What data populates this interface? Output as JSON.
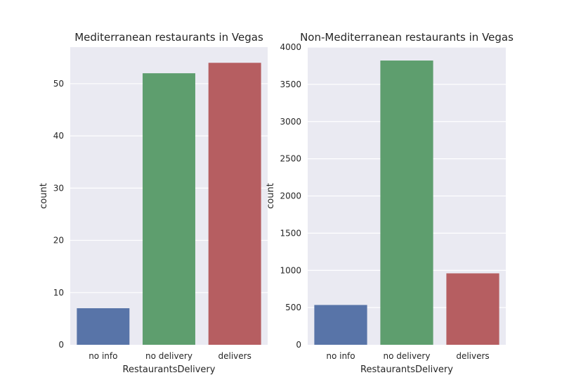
{
  "chart_data": [
    {
      "type": "bar",
      "title": "Mediterranean restaurants in Vegas",
      "xlabel": "RestaurantsDelivery",
      "ylabel": "count",
      "categories": [
        "no info",
        "no delivery",
        "delivers"
      ],
      "values": [
        7,
        52,
        54
      ],
      "colors": [
        "#5874a8",
        "#5e9e6e",
        "#b65e61"
      ],
      "ylim": [
        0,
        57
      ],
      "yticks": [
        0,
        10,
        20,
        30,
        40,
        50
      ],
      "grid": true,
      "background": "#eaeaf2"
    },
    {
      "type": "bar",
      "title": "Non-Mediterranean restaurants in Vegas",
      "xlabel": "RestaurantsDelivery",
      "ylabel": "count",
      "categories": [
        "no info",
        "no delivery",
        "delivers"
      ],
      "values": [
        535,
        3820,
        960
      ],
      "colors": [
        "#5874a8",
        "#5e9e6e",
        "#b65e61"
      ],
      "ylim": [
        0,
        4000
      ],
      "yticks": [
        0,
        500,
        1000,
        1500,
        2000,
        2500,
        3000,
        3500,
        4000
      ],
      "grid": true,
      "background": "#eaeaf2"
    }
  ]
}
